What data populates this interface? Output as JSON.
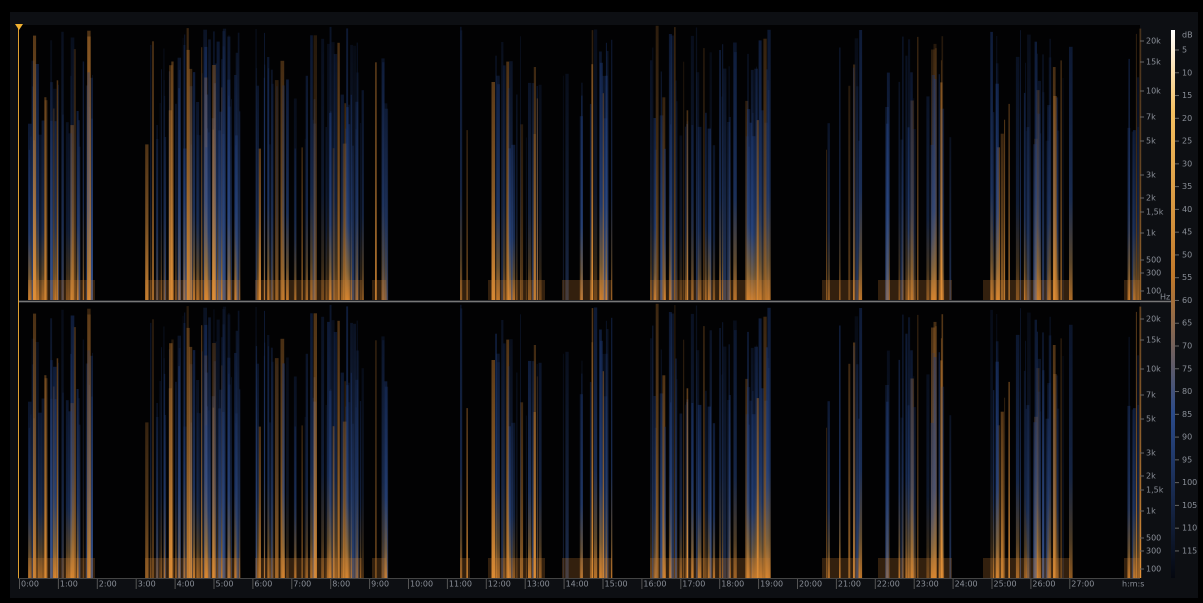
{
  "channels": [
    {
      "frequency_labels": [
        "20k",
        "15k",
        "10k",
        "7k",
        "5k",
        "3k",
        "2k",
        "1,5k",
        "1k",
        "500",
        "300",
        "100"
      ],
      "unit": "Hz"
    },
    {
      "frequency_labels": [
        "20k",
        "15k",
        "10k",
        "7k",
        "5k",
        "3k",
        "2k",
        "1,5k",
        "1k",
        "500",
        "300",
        "100"
      ]
    }
  ],
  "db_scale": {
    "unit": "dB",
    "labels": [
      "5",
      "10",
      "15",
      "20",
      "25",
      "30",
      "35",
      "40",
      "45",
      "50",
      "55",
      "60",
      "65",
      "70",
      "75",
      "80",
      "85",
      "90",
      "95",
      "100",
      "105",
      "110",
      "115"
    ]
  },
  "time_axis": {
    "labels": [
      "0:00",
      "1:00",
      "2:00",
      "3:00",
      "4:00",
      "5:00",
      "6:00",
      "7:00",
      "8:00",
      "9:00",
      "10:00",
      "11:00",
      "12:00",
      "13:00",
      "14:00",
      "15:00",
      "16:00",
      "17:00",
      "18:00",
      "19:00",
      "20:00",
      "21:00",
      "22:00",
      "23:00",
      "24:00",
      "25:00",
      "26:00",
      "27:00"
    ],
    "unit": "h:m:s"
  }
}
